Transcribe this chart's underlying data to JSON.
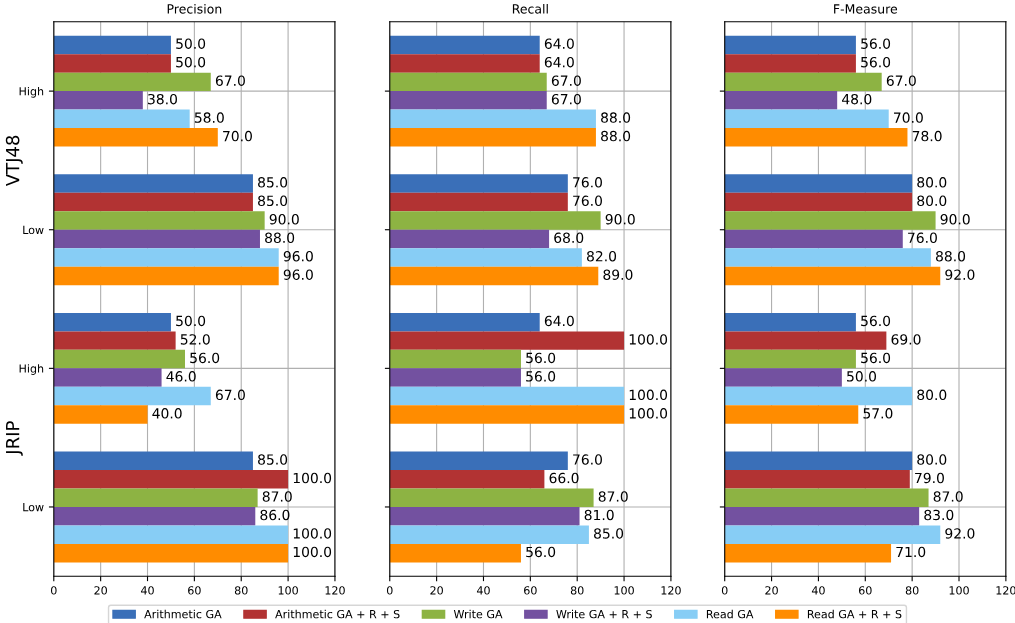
{
  "chart_data": [
    {
      "type": "bar",
      "orientation": "horizontal",
      "title": "Precision",
      "categories": [
        "High",
        "Low",
        "High",
        "Low"
      ],
      "annotations": [
        "VTJ48",
        "JRIP"
      ],
      "xlim": [
        0,
        120
      ],
      "xticks": [
        0,
        20,
        40,
        60,
        80,
        100,
        120
      ],
      "grid": true,
      "legend": "bottom",
      "series": [
        {
          "name": "Arithmetic GA",
          "color": "#3a6fb8",
          "values": [
            50,
            85,
            50,
            85
          ],
          "value_labels": [
            "50.0",
            "85.0",
            "50.0",
            "85.0"
          ]
        },
        {
          "name": "Arithmetic GA + R + S",
          "color": "#b23333",
          "values": [
            50,
            85,
            52,
            100
          ],
          "value_labels": [
            "50.0",
            "85.0",
            "52.0",
            "100.0"
          ]
        },
        {
          "name": "Write GA",
          "color": "#8db343",
          "values": [
            67,
            90,
            56,
            87
          ],
          "value_labels": [
            "67.0",
            "90.0",
            "56.0",
            "87.0"
          ]
        },
        {
          "name": "Write GA + R + S",
          "color": "#7351a0",
          "values": [
            38,
            88,
            46,
            86
          ],
          "value_labels": [
            "38.0",
            "88.0",
            "46.0",
            "86.0"
          ]
        },
        {
          "name": "Read GA",
          "color": "#87cdf5",
          "values": [
            58,
            96,
            67,
            100
          ],
          "value_labels": [
            "58.0",
            "96.0",
            "67.0",
            "100.0"
          ]
        },
        {
          "name": "Read GA + R + S",
          "color": "#ff8c00",
          "values": [
            70,
            96,
            40,
            100
          ],
          "value_labels": [
            "70.0",
            "96.0",
            "40.0",
            "100.0"
          ]
        }
      ]
    },
    {
      "type": "bar",
      "orientation": "horizontal",
      "title": "Recall",
      "categories": [
        null,
        null,
        null,
        null
      ],
      "tick_labels": "x",
      "xlim": [
        0,
        120
      ],
      "xticks": [
        0,
        20,
        40,
        60,
        80,
        100,
        120
      ],
      "grid": true,
      "legend": false,
      "series": [
        {
          "color": "#3a6fb8",
          "values": [
            64,
            76,
            64,
            76
          ],
          "value_labels": [
            "64.0",
            "76.0",
            "64.0",
            "76.0"
          ]
        },
        {
          "color": "#b23333",
          "values": [
            64,
            76,
            100,
            66
          ],
          "value_labels": [
            "64.0",
            "76.0",
            "100.0",
            "66.0"
          ]
        },
        {
          "color": "#8db343",
          "values": [
            67,
            90,
            56,
            87
          ],
          "value_labels": [
            "67.0",
            "90.0",
            "56.0",
            "87.0"
          ]
        },
        {
          "color": "#7351a0",
          "values": [
            67,
            68,
            56,
            81
          ],
          "value_labels": [
            "67.0",
            "68.0",
            "56.0",
            "81.0"
          ]
        },
        {
          "color": "#87cdf5",
          "values": [
            88,
            82,
            100,
            85
          ],
          "value_labels": [
            "88.0",
            "82.0",
            "100.0",
            "85.0"
          ]
        },
        {
          "color": "#ff8c00",
          "values": [
            88,
            89,
            100,
            56
          ],
          "value_labels": [
            "88.0",
            "89.0",
            "100.0",
            "56.0"
          ]
        }
      ]
    },
    {
      "type": "bar",
      "orientation": "horizontal",
      "title": "F-Measure",
      "categories": [
        null,
        null,
        null,
        null
      ],
      "tick_labels": "x",
      "xlim": [
        0,
        120
      ],
      "xticks": [
        0,
        20,
        40,
        60,
        80,
        100,
        120
      ],
      "grid": true,
      "legend": false,
      "series": [
        {
          "color": "#3a6fb8",
          "values": [
            56,
            80,
            56,
            80
          ],
          "value_labels": [
            "56.0",
            "80.0",
            "56.0",
            "80.0"
          ]
        },
        {
          "color": "#b23333",
          "values": [
            56,
            80,
            69,
            79
          ],
          "value_labels": [
            "56.0",
            "80.0",
            "69.0",
            "79.0"
          ]
        },
        {
          "color": "#8db343",
          "values": [
            67,
            90,
            56,
            87
          ],
          "value_labels": [
            "67.0",
            "90.0",
            "56.0",
            "87.0"
          ]
        },
        {
          "color": "#7351a0",
          "values": [
            48,
            76,
            50,
            83
          ],
          "value_labels": [
            "48.0",
            "76.0",
            "50.0",
            "83.0"
          ]
        },
        {
          "color": "#87cdf5",
          "values": [
            70,
            88,
            80,
            92
          ],
          "value_labels": [
            "70.0",
            "88.0",
            "80.0",
            "92.0"
          ]
        },
        {
          "color": "#ff8c00",
          "values": [
            78,
            92,
            57,
            71
          ],
          "value_labels": [
            "78.0",
            "92.0",
            "57.0",
            "71.0"
          ]
        }
      ]
    }
  ]
}
